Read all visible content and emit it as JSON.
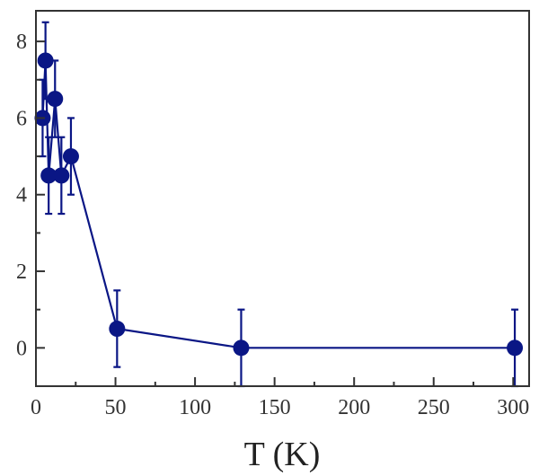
{
  "chart_data": {
    "type": "scatter",
    "title": "",
    "xlabel": "T (K)",
    "ylabel": "",
    "xlim": [
      0,
      310
    ],
    "ylim": [
      -1,
      8.8
    ],
    "grid": false,
    "x_ticks": [
      0,
      50,
      100,
      150,
      200,
      250,
      300
    ],
    "y_ticks": [
      0,
      2,
      4,
      6,
      8
    ],
    "series": [
      {
        "color": "#0a1685",
        "marker": "circle",
        "points": [
          {
            "x": 4.2,
            "y": 6.0,
            "err": 1.0
          },
          {
            "x": 6,
            "y": 7.5,
            "err": 1.0
          },
          {
            "x": 8,
            "y": 4.5,
            "err": 1.0
          },
          {
            "x": 12,
            "y": 6.5,
            "err": 1.0
          },
          {
            "x": 16,
            "y": 4.5,
            "err": 1.0
          },
          {
            "x": 22,
            "y": 5.0,
            "err": 1.0
          },
          {
            "x": 51,
            "y": 0.5,
            "err": 1.0
          },
          {
            "x": 129,
            "y": 0.0,
            "err": 1.0
          },
          {
            "x": 301,
            "y": 0.0,
            "err": 1.0
          }
        ]
      }
    ]
  }
}
